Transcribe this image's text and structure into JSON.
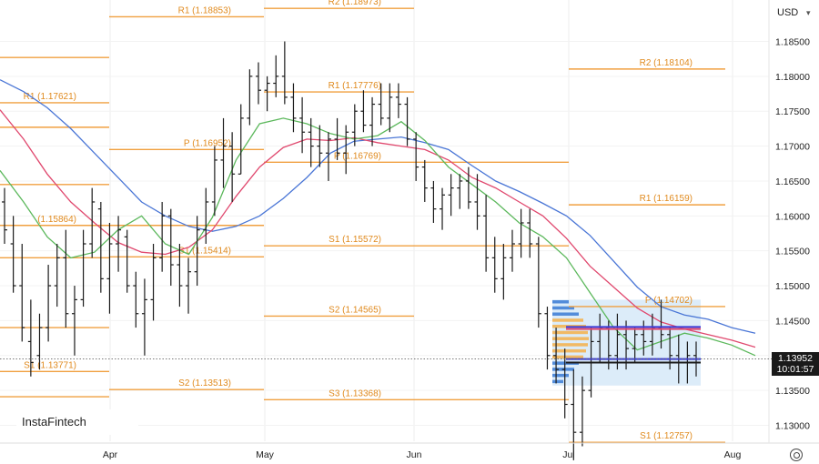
{
  "chart_data": {
    "type": "candlestick",
    "price_range": [
      1.126,
      1.1885
    ],
    "y_ticks": [
      "1.18500",
      "1.18000",
      "1.17500",
      "1.17000",
      "1.16500",
      "1.16000",
      "1.15500",
      "1.15000",
      "1.14500",
      "1.14000",
      "1.13500",
      "1.13000"
    ],
    "x_ticks": [
      "Apr",
      "May",
      "Jun",
      "Jul",
      "Aug"
    ],
    "currency": "USD",
    "last_price": "1.13952",
    "countdown": "10:01:57",
    "brand": "InstaFintech",
    "colors": {
      "pivot": "#f0a040",
      "ma_fast": "#5cb85c",
      "ma_mid": "#e0486e",
      "ma_slow": "#4a76d6",
      "bars": "#1a1a1a",
      "volume_profile": "#3a7bd5",
      "value_area": "#d8eaf8"
    },
    "moving_averages": [
      {
        "color": "ma_slow",
        "points": [
          [
            0,
            1.1795
          ],
          [
            10,
            1.1778
          ],
          [
            20,
            1.1755
          ],
          [
            30,
            1.1725
          ],
          [
            40,
            1.169
          ],
          [
            50,
            1.1655
          ],
          [
            60,
            1.162
          ],
          [
            70,
            1.16
          ],
          [
            80,
            1.1585
          ],
          [
            90,
            1.1578
          ],
          [
            100,
            1.1585
          ],
          [
            110,
            1.16
          ],
          [
            120,
            1.1625
          ],
          [
            130,
            1.1655
          ],
          [
            140,
            1.169
          ],
          [
            150,
            1.1707
          ],
          [
            160,
            1.171
          ],
          [
            170,
            1.1713
          ],
          [
            180,
            1.1705
          ],
          [
            190,
            1.1695
          ],
          [
            200,
            1.1672
          ],
          [
            210,
            1.165
          ],
          [
            220,
            1.1635
          ],
          [
            230,
            1.1618
          ],
          [
            240,
            1.16
          ],
          [
            250,
            1.1572
          ],
          [
            260,
            1.1535
          ],
          [
            270,
            1.1498
          ],
          [
            280,
            1.147
          ],
          [
            290,
            1.1458
          ],
          [
            300,
            1.1452
          ],
          [
            310,
            1.144
          ],
          [
            320,
            1.1432
          ]
        ]
      },
      {
        "color": "ma_mid",
        "points": [
          [
            0,
            1.1752
          ],
          [
            10,
            1.171
          ],
          [
            20,
            1.166
          ],
          [
            30,
            1.162
          ],
          [
            40,
            1.159
          ],
          [
            50,
            1.1562
          ],
          [
            60,
            1.1548
          ],
          [
            70,
            1.1545
          ],
          [
            80,
            1.1555
          ],
          [
            90,
            1.158
          ],
          [
            100,
            1.1628
          ],
          [
            110,
            1.167
          ],
          [
            120,
            1.1698
          ],
          [
            130,
            1.171
          ],
          [
            140,
            1.1708
          ],
          [
            150,
            1.1712
          ],
          [
            160,
            1.1705
          ],
          [
            170,
            1.17
          ],
          [
            180,
            1.1695
          ],
          [
            190,
            1.168
          ],
          [
            200,
            1.1655
          ],
          [
            210,
            1.164
          ],
          [
            220,
            1.162
          ],
          [
            230,
            1.16
          ],
          [
            240,
            1.1568
          ],
          [
            250,
            1.1528
          ],
          [
            260,
            1.1498
          ],
          [
            270,
            1.1468
          ],
          [
            280,
            1.1448
          ],
          [
            290,
            1.1438
          ],
          [
            300,
            1.143
          ],
          [
            310,
            1.1422
          ],
          [
            320,
            1.1412
          ]
        ]
      },
      {
        "color": "ma_fast",
        "points": [
          [
            0,
            1.1665
          ],
          [
            10,
            1.162
          ],
          [
            20,
            1.157
          ],
          [
            30,
            1.154
          ],
          [
            40,
            1.1548
          ],
          [
            50,
            1.158
          ],
          [
            60,
            1.16
          ],
          [
            70,
            1.156
          ],
          [
            80,
            1.1545
          ],
          [
            90,
            1.1598
          ],
          [
            100,
            1.168
          ],
          [
            110,
            1.1732
          ],
          [
            120,
            1.174
          ],
          [
            130,
            1.1732
          ],
          [
            140,
            1.1718
          ],
          [
            150,
            1.171
          ],
          [
            160,
            1.1715
          ],
          [
            170,
            1.1735
          ],
          [
            180,
            1.1708
          ],
          [
            190,
            1.167
          ],
          [
            200,
            1.1645
          ],
          [
            210,
            1.162
          ],
          [
            220,
            1.159
          ],
          [
            230,
            1.157
          ],
          [
            240,
            1.154
          ],
          [
            250,
            1.149
          ],
          [
            260,
            1.144
          ],
          [
            270,
            1.1408
          ],
          [
            280,
            1.142
          ],
          [
            290,
            1.1432
          ],
          [
            300,
            1.1425
          ],
          [
            310,
            1.1415
          ],
          [
            320,
            1.14
          ]
        ]
      }
    ]
  },
  "pivot_lines": [
    {
      "label": "",
      "value": 1.1827,
      "from": 0,
      "to": 120
    },
    {
      "label": "",
      "value": 1.1727,
      "from": 0,
      "to": 120
    },
    {
      "label": "R1 (1.17621)",
      "value": 1.17621,
      "from": 0,
      "to": 120
    },
    {
      "label": "",
      "value": 1.1645,
      "from": 0,
      "to": 120
    },
    {
      "label": "(1.15864)",
      "value": 1.15864,
      "from": 0,
      "to": 120
    },
    {
      "label": "",
      "value": 1.154,
      "from": 0,
      "to": 120
    },
    {
      "label": "",
      "value": 1.144,
      "from": 0,
      "to": 120
    },
    {
      "label": "S1 (1.13771)",
      "value": 1.13771,
      "from": 0,
      "to": 120
    },
    {
      "label": "",
      "value": 1.1341,
      "from": 0,
      "to": 120
    },
    {
      "label": "R1 (1.18853)",
      "value": 1.18853,
      "from": 120,
      "to": 290
    },
    {
      "label": "P (1.16952)",
      "value": 1.16952,
      "from": 120,
      "to": 290
    },
    {
      "label": "",
      "value": 1.15864,
      "from": 120,
      "to": 290
    },
    {
      "label": "S1 (1.15414)",
      "value": 1.15414,
      "from": 120,
      "to": 290
    },
    {
      "label": "S2 (1.13513)",
      "value": 1.13513,
      "from": 120,
      "to": 290
    },
    {
      "label": "R2 (1.18973)",
      "value": 1.18973,
      "from": 290,
      "to": 455
    },
    {
      "label": "R1 (1.17776)",
      "value": 1.17776,
      "from": 290,
      "to": 455
    },
    {
      "label": "P (1.16769)",
      "value": 1.16769,
      "from": 290,
      "to": 455
    },
    {
      "label": "S1 (1.15572)",
      "value": 1.15572,
      "from": 290,
      "to": 455
    },
    {
      "label": "S2 (1.14565)",
      "value": 1.14565,
      "from": 290,
      "to": 455
    },
    {
      "label": "S3 (1.13368)",
      "value": 1.13368,
      "from": 290,
      "to": 455
    },
    {
      "label": "",
      "value": 1.16769,
      "from": 455,
      "to": 625
    },
    {
      "label": "",
      "value": 1.15572,
      "from": 455,
      "to": 625
    },
    {
      "label": "",
      "value": 1.13368,
      "from": 455,
      "to": 625
    },
    {
      "label": "R2 (1.18104)",
      "value": 1.18104,
      "from": 625,
      "to": 797
    },
    {
      "label": "R1 (1.16159)",
      "value": 1.16159,
      "from": 625,
      "to": 797
    },
    {
      "label": "P (1.14702)",
      "value": 1.14702,
      "from": 625,
      "to": 797
    },
    {
      "label": "S1 (1.12757)",
      "value": 1.12757,
      "from": 625,
      "to": 797
    }
  ],
  "bars": [
    [
      1.164,
      1.156,
      1.162,
      1.158
    ],
    [
      1.16,
      1.149,
      1.156,
      1.15
    ],
    [
      1.156,
      1.142,
      1.15,
      1.144
    ],
    [
      1.148,
      1.137,
      1.142,
      1.139
    ],
    [
      1.146,
      1.138,
      1.14,
      1.144
    ],
    [
      1.153,
      1.142,
      1.144,
      1.15
    ],
    [
      1.156,
      1.147,
      1.15,
      1.154
    ],
    [
      1.158,
      1.144,
      1.154,
      1.146
    ],
    [
      1.15,
      1.14,
      1.146,
      1.148
    ],
    [
      1.158,
      1.147,
      1.148,
      1.156
    ],
    [
      1.164,
      1.154,
      1.156,
      1.162
    ],
    [
      1.162,
      1.149,
      1.161,
      1.151
    ],
    [
      1.159,
      1.146,
      1.151,
      1.156
    ],
    [
      1.16,
      1.152,
      1.156,
      1.158
    ],
    [
      1.158,
      1.149,
      1.157,
      1.15
    ],
    [
      1.152,
      1.144,
      1.15,
      1.146
    ],
    [
      1.151,
      1.14,
      1.146,
      1.148
    ],
    [
      1.156,
      1.145,
      1.148,
      1.154
    ],
    [
      1.162,
      1.152,
      1.154,
      1.16
    ],
    [
      1.161,
      1.15,
      1.16,
      1.153
    ],
    [
      1.156,
      1.147,
      1.153,
      1.15
    ],
    [
      1.154,
      1.146,
      1.15,
      1.152
    ],
    [
      1.16,
      1.15,
      1.152,
      1.158
    ],
    [
      1.164,
      1.156,
      1.158,
      1.162
    ],
    [
      1.17,
      1.16,
      1.162,
      1.168
    ],
    [
      1.174,
      1.164,
      1.168,
      1.17
    ],
    [
      1.172,
      1.162,
      1.17,
      1.166
    ],
    [
      1.176,
      1.166,
      1.166,
      1.174
    ],
    [
      1.181,
      1.173,
      1.174,
      1.18
    ],
    [
      1.182,
      1.176,
      1.18,
      1.178
    ],
    [
      1.18,
      1.175,
      1.178,
      1.179
    ],
    [
      1.183,
      1.177,
      1.179,
      1.18
    ],
    [
      1.185,
      1.176,
      1.18,
      1.177
    ],
    [
      1.179,
      1.172,
      1.177,
      1.174
    ],
    [
      1.177,
      1.169,
      1.174,
      1.172
    ],
    [
      1.174,
      1.167,
      1.172,
      1.17
    ],
    [
      1.173,
      1.167,
      1.17,
      1.169
    ],
    [
      1.172,
      1.165,
      1.169,
      1.171
    ],
    [
      1.174,
      1.168,
      1.171,
      1.169
    ],
    [
      1.173,
      1.166,
      1.169,
      1.172
    ],
    [
      1.176,
      1.17,
      1.172,
      1.175
    ],
    [
      1.178,
      1.172,
      1.175,
      1.173
    ],
    [
      1.177,
      1.17,
      1.173,
      1.176
    ],
    [
      1.179,
      1.173,
      1.176,
      1.174
    ],
    [
      1.179,
      1.172,
      1.174,
      1.177
    ],
    [
      1.179,
      1.174,
      1.177,
      1.176
    ],
    [
      1.177,
      1.17,
      1.176,
      1.171
    ],
    [
      1.172,
      1.165,
      1.171,
      1.167
    ],
    [
      1.168,
      1.162,
      1.167,
      1.164
    ],
    [
      1.165,
      1.159,
      1.164,
      1.161
    ],
    [
      1.164,
      1.158,
      1.161,
      1.163
    ],
    [
      1.166,
      1.16,
      1.163,
      1.164
    ],
    [
      1.166,
      1.161,
      1.164,
      1.165
    ],
    [
      1.167,
      1.161,
      1.165,
      1.162
    ],
    [
      1.166,
      1.158,
      1.162,
      1.16
    ],
    [
      1.163,
      1.152,
      1.16,
      1.154
    ],
    [
      1.157,
      1.149,
      1.154,
      1.151
    ],
    [
      1.156,
      1.148,
      1.151,
      1.154
    ],
    [
      1.158,
      1.152,
      1.154,
      1.156
    ],
    [
      1.161,
      1.154,
      1.156,
      1.159
    ],
    [
      1.161,
      1.154,
      1.159,
      1.156
    ],
    [
      1.157,
      1.144,
      1.156,
      1.146
    ],
    [
      1.147,
      1.138,
      1.146,
      1.14
    ],
    [
      1.144,
      1.136,
      1.14,
      1.138
    ],
    [
      1.141,
      1.131,
      1.138,
      1.133
    ],
    [
      1.138,
      1.125,
      1.133,
      1.129
    ],
    [
      1.137,
      1.127,
      1.129,
      1.135
    ],
    [
      1.144,
      1.134,
      1.135,
      1.142
    ],
    [
      1.146,
      1.139,
      1.142,
      1.144
    ],
    [
      1.145,
      1.138,
      1.144,
      1.14
    ],
    [
      1.146,
      1.138,
      1.14,
      1.143
    ],
    [
      1.145,
      1.138,
      1.143,
      1.141
    ],
    [
      1.144,
      1.139,
      1.141,
      1.143
    ],
    [
      1.145,
      1.14,
      1.143,
      1.142
    ],
    [
      1.146,
      1.14,
      1.142,
      1.144
    ],
    [
      1.148,
      1.141,
      1.144,
      1.143
    ],
    [
      1.144,
      1.138,
      1.143,
      1.14
    ],
    [
      1.143,
      1.136,
      1.14,
      1.139
    ],
    [
      1.142,
      1.136,
      1.139,
      1.14
    ],
    [
      1.142,
      1.137,
      1.14,
      1.1395
    ]
  ],
  "value_area": {
    "x_from": 607,
    "x_to": 770,
    "high": 1.148,
    "low": 1.1357
  },
  "profile_lines": [
    {
      "value": 1.1441,
      "color": "#3a3ad6"
    },
    {
      "value": 1.1438,
      "color": "#e0486e"
    },
    {
      "value": 1.1395,
      "color": "#3a3ad6"
    },
    {
      "value": 1.139,
      "color": "#1a1a1a"
    }
  ]
}
